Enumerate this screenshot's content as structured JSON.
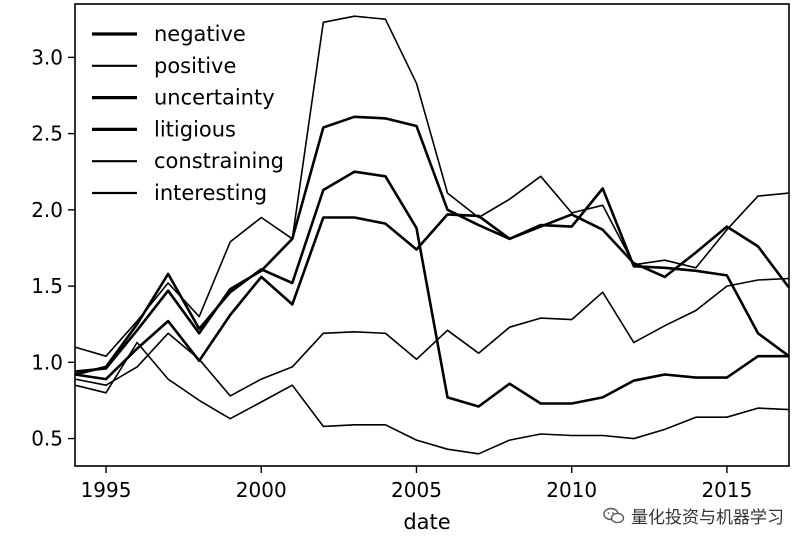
{
  "chart_data": {
    "type": "line",
    "xlabel": "date",
    "ylabel": "",
    "xlim": [
      1994,
      2017
    ],
    "ylim": [
      0.32,
      3.35
    ],
    "xticks": [
      1995,
      2000,
      2005,
      2010,
      2015
    ],
    "yticks": [
      0.5,
      1.0,
      1.5,
      2.0,
      2.5,
      3.0
    ],
    "xtick_labels": [
      "1995",
      "2000",
      "2005",
      "2010",
      "2015"
    ],
    "ytick_labels": [
      "0.5",
      "1.0",
      "1.5",
      "2.0",
      "2.5",
      "3.0"
    ],
    "grid": false,
    "legend_position": "top-left",
    "x": [
      1994,
      1995,
      1996,
      1997,
      1998,
      1999,
      2000,
      2001,
      2002,
      2003,
      2004,
      2005,
      2006,
      2007,
      2008,
      2009,
      2010,
      2011,
      2012,
      2013,
      2014,
      2015,
      2016,
      2017
    ],
    "series": [
      {
        "name": "negative",
        "stroke_width": 2.6,
        "values": [
          0.92,
          0.97,
          1.25,
          1.58,
          1.22,
          1.46,
          1.61,
          1.52,
          2.13,
          2.25,
          2.22,
          1.88,
          0.77,
          0.71,
          0.86,
          0.73,
          0.73,
          0.77,
          0.88,
          0.92,
          0.9,
          0.9,
          1.04,
          1.04
        ]
      },
      {
        "name": "positive",
        "stroke_width": 1.6,
        "values": [
          1.1,
          1.04,
          1.27,
          1.52,
          1.3,
          1.79,
          1.95,
          1.81,
          3.23,
          3.27,
          3.25,
          2.83,
          2.11,
          1.95,
          2.07,
          2.22,
          1.98,
          2.03,
          1.64,
          1.67,
          1.62,
          1.87,
          2.09,
          2.11
        ]
      },
      {
        "name": "uncertainty",
        "stroke_width": 2.6,
        "values": [
          0.94,
          0.96,
          1.21,
          1.47,
          1.19,
          1.48,
          1.6,
          1.81,
          2.54,
          2.61,
          2.6,
          2.55,
          2.0,
          1.9,
          1.81,
          1.89,
          1.97,
          1.87,
          1.65,
          1.56,
          1.72,
          1.89,
          1.76,
          1.49
        ]
      },
      {
        "name": "litigious",
        "stroke_width": 2.6,
        "values": [
          0.92,
          0.89,
          1.09,
          1.27,
          1.01,
          1.31,
          1.56,
          1.38,
          1.95,
          1.95,
          1.91,
          1.74,
          1.97,
          1.96,
          1.81,
          1.9,
          1.89,
          2.14,
          1.63,
          1.62,
          1.6,
          1.57,
          1.19,
          1.04
        ]
      },
      {
        "name": "constraining",
        "stroke_width": 1.6,
        "values": [
          0.89,
          0.85,
          0.97,
          1.19,
          1.02,
          0.78,
          0.89,
          0.97,
          1.19,
          1.2,
          1.19,
          1.02,
          1.21,
          1.06,
          1.23,
          1.29,
          1.28,
          1.46,
          1.13,
          1.24,
          1.34,
          1.5,
          1.54,
          1.55
        ]
      },
      {
        "name": "interesting",
        "stroke_width": 1.6,
        "values": [
          0.85,
          0.8,
          1.13,
          0.89,
          0.75,
          0.63,
          0.74,
          0.85,
          0.58,
          0.59,
          0.59,
          0.49,
          0.43,
          0.4,
          0.49,
          0.53,
          0.52,
          0.52,
          0.5,
          0.56,
          0.64,
          0.64,
          0.7,
          0.69
        ]
      }
    ]
  },
  "watermark": {
    "text": "量化投资与机器学习",
    "icon": "wechat-icon"
  }
}
